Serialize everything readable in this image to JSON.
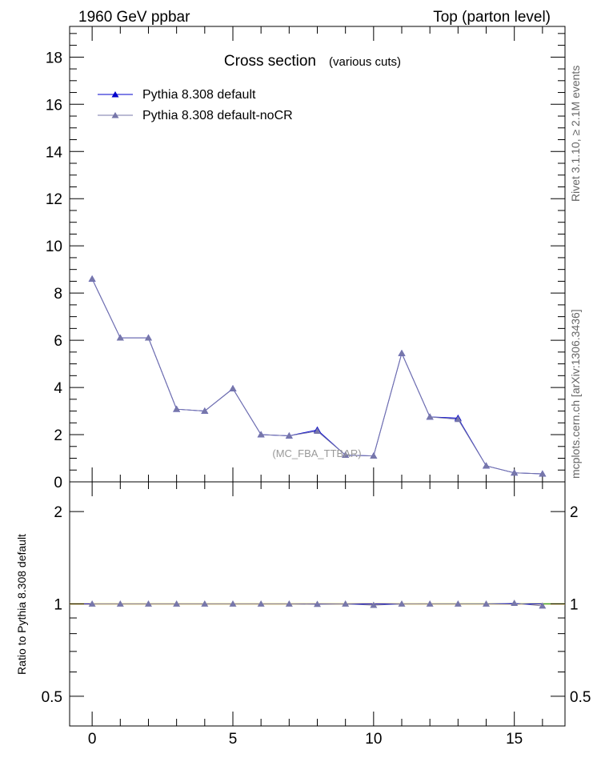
{
  "header": {
    "left": "1960 GeV ppbar",
    "right": "Top (parton level)"
  },
  "side_labels": {
    "rivet": "Rivet 3.1.10, ≥ 2.1M events",
    "mcplots": "mcplots.cern.ch [arXiv:1306.3436]"
  },
  "chart_data": {
    "type": "line",
    "title": "Cross section",
    "subtitle": "(various cuts)",
    "watermark": "(MC_FBA_TTBAR)",
    "xlabel": "",
    "ylabel": "",
    "xlim": [
      -0.8,
      16.8
    ],
    "ylim": [
      0,
      19.3
    ],
    "x_ticks": [
      "0",
      "5",
      "10",
      "15"
    ],
    "y_ticks": [
      "0",
      "2",
      "4",
      "6",
      "8",
      "10",
      "12",
      "14",
      "16",
      "18"
    ],
    "legend_position": "top-left",
    "grid": false,
    "x": [
      0,
      1,
      2,
      3,
      4,
      5,
      6,
      7,
      8,
      9,
      10,
      11,
      12,
      13,
      14,
      15,
      16
    ],
    "series": [
      {
        "name": "Pythia 8.308 default",
        "color": "#0000cc",
        "values": [
          8.6,
          6.1,
          6.1,
          3.08,
          3.0,
          3.95,
          2.0,
          1.95,
          2.2,
          1.13,
          1.1,
          5.45,
          2.75,
          2.7,
          0.68,
          0.38,
          0.34
        ]
      },
      {
        "name": "Pythia 8.308 default-noCR",
        "color": "#7777aa",
        "values": [
          8.6,
          6.1,
          6.1,
          3.08,
          3.0,
          3.95,
          2.0,
          1.95,
          2.15,
          1.13,
          1.1,
          5.45,
          2.75,
          2.65,
          0.68,
          0.38,
          0.34
        ]
      }
    ],
    "ratio": {
      "ylabel": "Ratio to Pythia 8.308 default",
      "y_ticks": [
        "0.5",
        "1",
        "2"
      ],
      "ylim": [
        0.4,
        2.5
      ],
      "band_color": "#ffe066",
      "series": [
        {
          "name": "Pythia 8.308 default",
          "color": "#0000cc",
          "values": [
            1,
            1,
            1,
            1,
            1,
            1,
            1,
            1,
            1,
            1,
            1,
            1,
            1,
            1,
            1,
            1,
            1
          ]
        },
        {
          "name": "Pythia 8.308 default-noCR",
          "color": "#7777aa",
          "values": [
            1,
            1,
            1,
            1,
            1,
            1,
            1,
            1,
            0.998,
            1.0,
            0.99,
            1,
            1,
            1,
            1,
            1.005,
            0.985
          ]
        }
      ]
    }
  }
}
